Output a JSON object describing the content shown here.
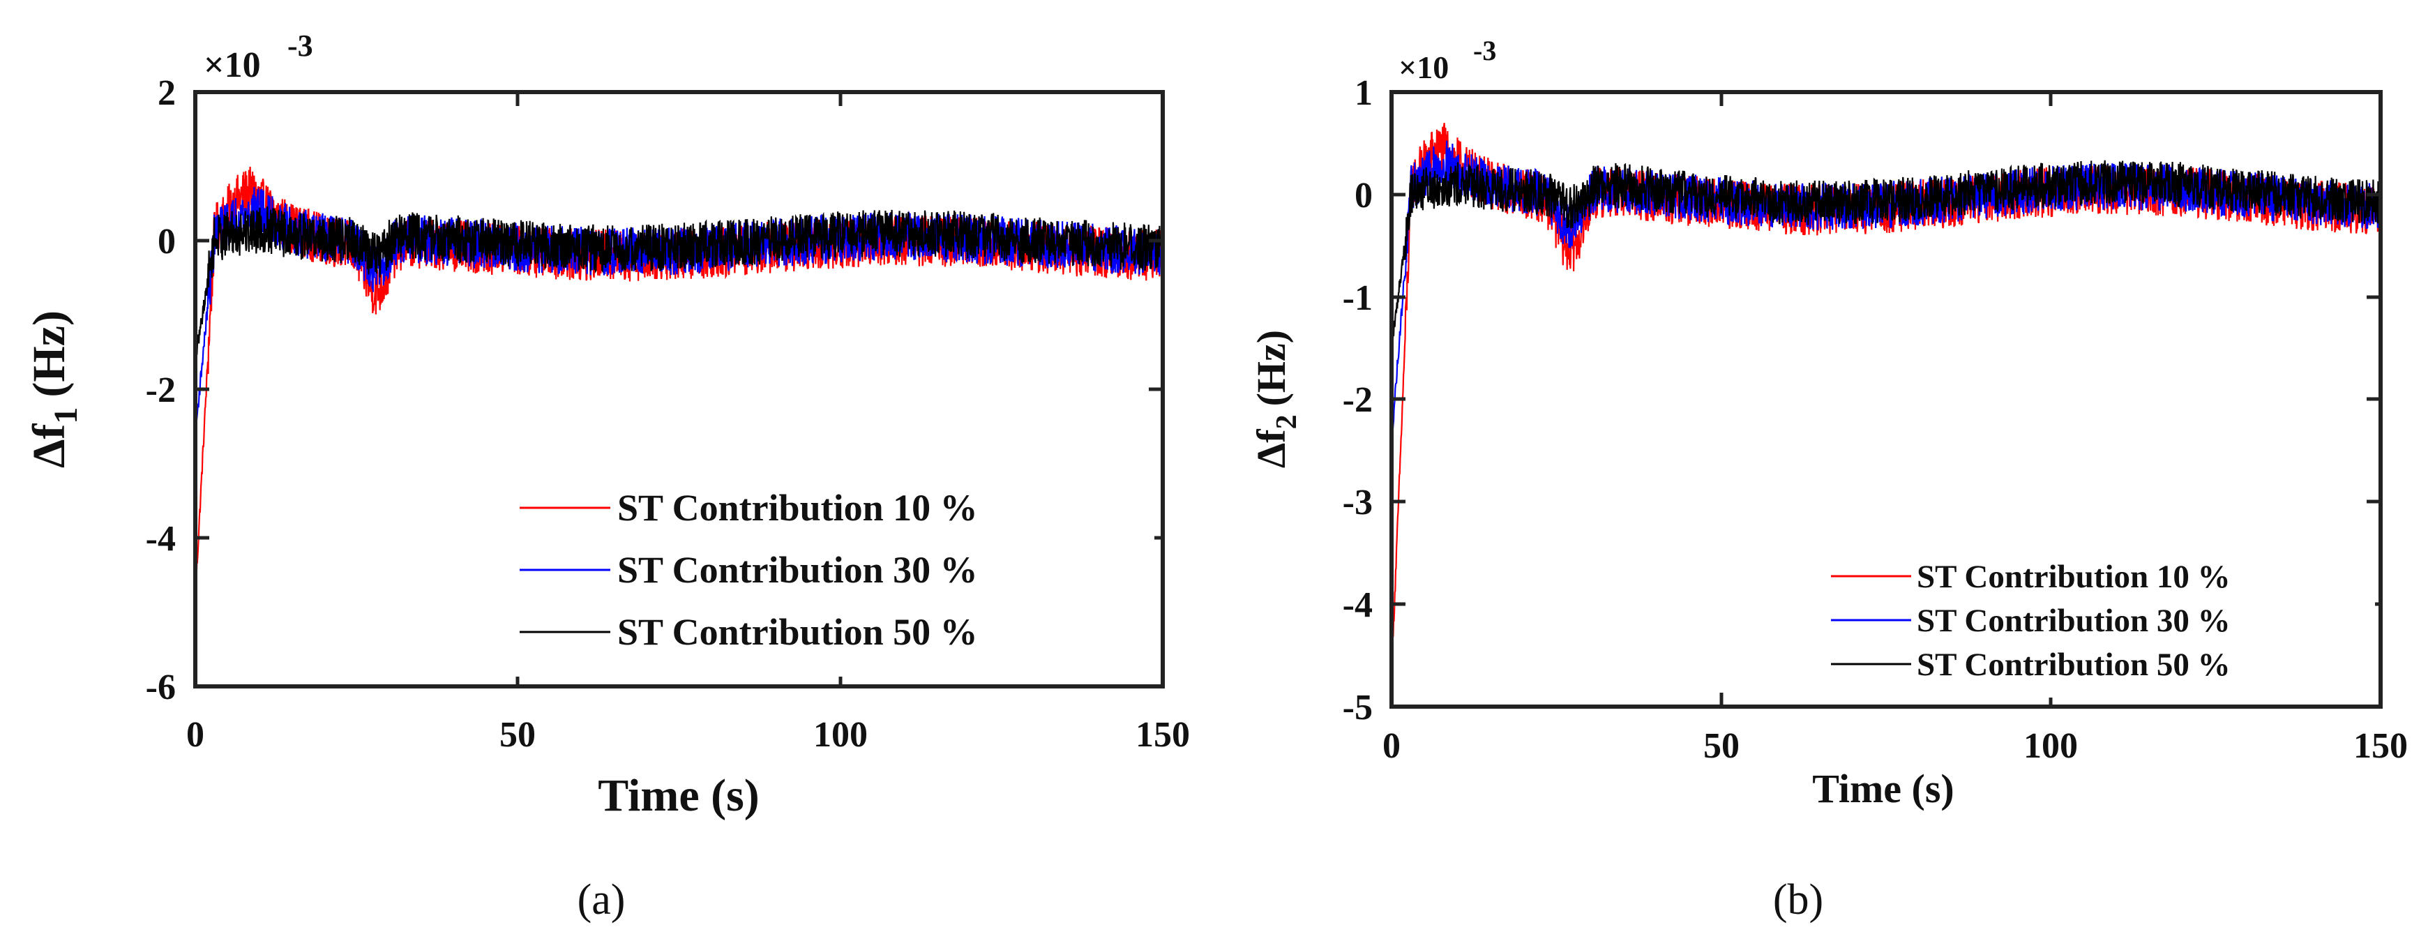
{
  "chart_data": [
    {
      "type": "line",
      "panel_label": "(a)",
      "title": "",
      "xlabel": "Time (s)",
      "ylabel": "Δf",
      "ylabel_sub": "1",
      "ylabel_unit": "(Hz)",
      "scale_base": "×10",
      "scale_exp": "-3",
      "xlim": [
        0,
        150
      ],
      "ylim": [
        -6,
        2
      ],
      "x_ticks": [
        "0",
        "50",
        "100",
        "150"
      ],
      "x_tick_values": [
        0,
        50,
        100,
        150
      ],
      "y_ticks": [
        "-6",
        "-4",
        "-2",
        "0",
        "2"
      ],
      "y_tick_values": [
        -6,
        -4,
        -2,
        0,
        2
      ],
      "legend_position": "bottom-right",
      "series": [
        {
          "name": "ST Contribution 10 %",
          "color": "#ff0000",
          "start": -4.8,
          "peak": 0.65,
          "peak_time": 9,
          "settle": -0.1,
          "noise": 0.35,
          "dip_time": 28,
          "dip": -0.6
        },
        {
          "name": "ST Contribution 30 %",
          "color": "#0000ff",
          "start": -2.6,
          "peak": 0.4,
          "peak_time": 10,
          "settle": -0.05,
          "noise": 0.33,
          "dip_time": 28,
          "dip": -0.35
        },
        {
          "name": "ST Contribution 50 %",
          "color": "#000000",
          "start": -1.6,
          "peak": 0.15,
          "peak_time": 11,
          "settle": 0.0,
          "noise": 0.32,
          "dip_time": 28,
          "dip": -0.2
        }
      ]
    },
    {
      "type": "line",
      "panel_label": "(b)",
      "title": "",
      "xlabel": "Time (s)",
      "ylabel": "Δf",
      "ylabel_sub": "2",
      "ylabel_unit": "(Hz)",
      "scale_base": "×10",
      "scale_exp": "-3",
      "xlim": [
        0,
        150
      ],
      "ylim": [
        -5,
        1
      ],
      "x_ticks": [
        "0",
        "50",
        "100",
        "150"
      ],
      "x_tick_values": [
        0,
        50,
        100,
        150
      ],
      "y_ticks": [
        "-5",
        "-4",
        "-3",
        "-2",
        "-1",
        "0",
        "1"
      ],
      "y_tick_values": [
        -5,
        -4,
        -3,
        -2,
        -1,
        0,
        1
      ],
      "legend_position": "bottom-right",
      "series": [
        {
          "name": "ST Contribution 10 %",
          "color": "#ff0000",
          "start": -4.7,
          "peak": 0.45,
          "peak_time": 8,
          "settle": -0.05,
          "noise": 0.25,
          "dip_time": 27,
          "dip": -0.5
        },
        {
          "name": "ST Contribution 30 %",
          "color": "#0000ff",
          "start": -2.4,
          "peak": 0.3,
          "peak_time": 9,
          "settle": -0.02,
          "noise": 0.23,
          "dip_time": 27,
          "dip": -0.3
        },
        {
          "name": "ST Contribution 50 %",
          "color": "#000000",
          "start": -1.5,
          "peak": 0.1,
          "peak_time": 10,
          "settle": 0.02,
          "noise": 0.22,
          "dip_time": 27,
          "dip": -0.15
        }
      ]
    }
  ]
}
